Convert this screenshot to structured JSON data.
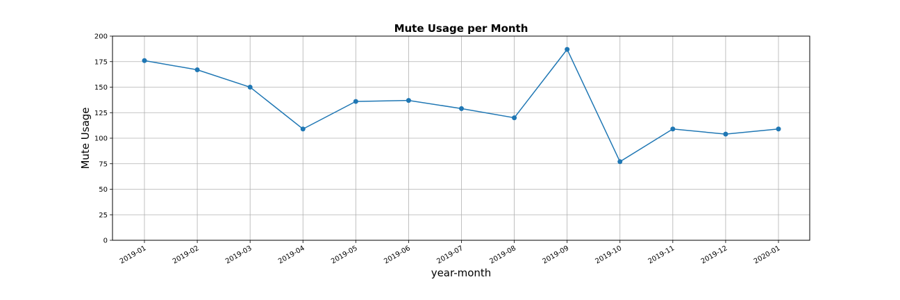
{
  "chart_data": {
    "type": "line",
    "title": "Mute Usage per Month",
    "xlabel": "year-month",
    "ylabel": "Mute Usage",
    "categories": [
      "2019-01",
      "2019-02",
      "2019-03",
      "2019-04",
      "2019-05",
      "2019-06",
      "2019-07",
      "2019-08",
      "2019-09",
      "2019-10",
      "2019-11",
      "2019-12",
      "2020-01"
    ],
    "series": [
      {
        "values": [
          176,
          167,
          150,
          109,
          136,
          137,
          129,
          120,
          187,
          77,
          109,
          104,
          109
        ]
      }
    ],
    "ylim": [
      0,
      200
    ],
    "yticks": [
      "0",
      "25",
      "50",
      "75",
      "100",
      "125",
      "150",
      "175",
      "200"
    ],
    "grid": true,
    "marker": "circle",
    "line_color": "#1f77b4"
  }
}
